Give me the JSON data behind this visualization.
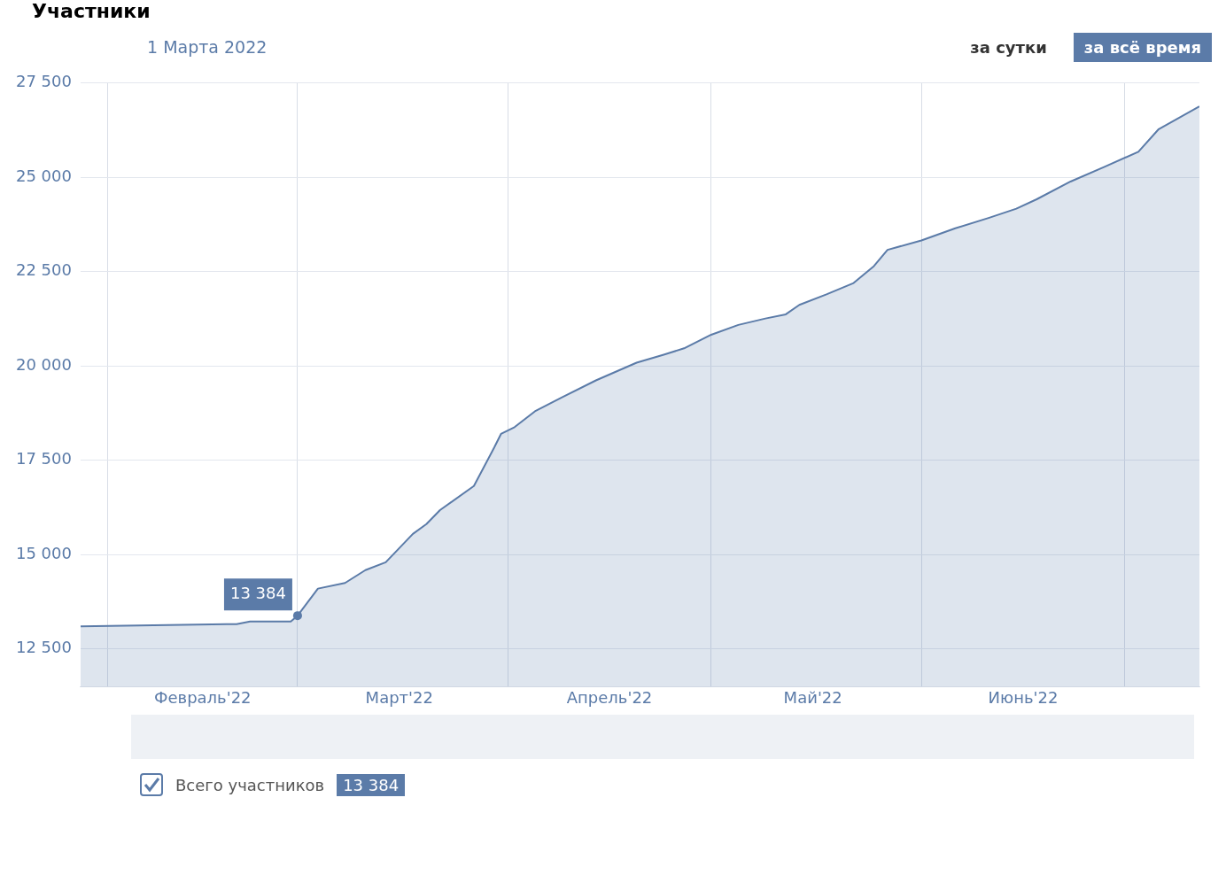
{
  "chart_data": {
    "type": "area",
    "title": "Участники",
    "subtitle": "1 Марта 2022",
    "x": [
      "2022-01-28",
      "2022-02-20",
      "2022-02-22",
      "2022-02-28",
      "2022-03-01",
      "2022-03-04",
      "2022-03-08",
      "2022-03-11",
      "2022-03-14",
      "2022-03-18",
      "2022-03-20",
      "2022-03-22",
      "2022-03-27",
      "2022-03-30",
      "2022-03-31",
      "2022-04-02",
      "2022-04-05",
      "2022-04-09",
      "2022-04-14",
      "2022-04-20",
      "2022-04-24",
      "2022-04-27",
      "2022-05-01",
      "2022-05-05",
      "2022-05-09",
      "2022-05-12",
      "2022-05-14",
      "2022-05-18",
      "2022-05-22",
      "2022-05-25",
      "2022-05-27",
      "2022-06-01",
      "2022-06-06",
      "2022-06-11",
      "2022-06-15",
      "2022-06-18",
      "2022-06-23",
      "2022-06-28",
      "2022-07-03",
      "2022-07-06",
      "2022-07-12"
    ],
    "series": [
      {
        "name": "Всего участников",
        "color": "#5b7ba8",
        "values": [
          13100,
          13160,
          13230,
          13230,
          13384,
          14100,
          14250,
          14590,
          14800,
          15550,
          15810,
          16180,
          16820,
          17840,
          18200,
          18380,
          18800,
          19170,
          19620,
          20090,
          20300,
          20470,
          20830,
          21090,
          21260,
          21370,
          21620,
          21900,
          22200,
          22650,
          23080,
          23330,
          23650,
          23930,
          24170,
          24420,
          24890,
          25280,
          25680,
          26280,
          26880
        ]
      }
    ],
    "xlim": [
      "2022-01-28",
      "2022-07-12"
    ],
    "xticks": [
      {
        "value": "2022-02-01",
        "label": null
      },
      {
        "value": "2022-02-15",
        "label": "Февраль'22"
      },
      {
        "value": "2022-03-01",
        "label": null
      },
      {
        "value": "2022-03-16",
        "label": "Март'22"
      },
      {
        "value": "2022-04-01",
        "label": null
      },
      {
        "value": "2022-04-16",
        "label": "Апрель'22"
      },
      {
        "value": "2022-05-01",
        "label": null
      },
      {
        "value": "2022-05-16",
        "label": "Май'22"
      },
      {
        "value": "2022-06-01",
        "label": null
      },
      {
        "value": "2022-06-16",
        "label": "Июнь'22"
      },
      {
        "value": "2022-07-01",
        "label": null
      }
    ],
    "ylim": [
      11500,
      27500
    ],
    "yticks": [
      {
        "value": 12500,
        "label": "12 500"
      },
      {
        "value": 15000,
        "label": "15 000"
      },
      {
        "value": 17500,
        "label": "17 500"
      },
      {
        "value": 20000,
        "label": "20 000"
      },
      {
        "value": 22500,
        "label": "22 500"
      },
      {
        "value": 25000,
        "label": "25 000"
      },
      {
        "value": 27500,
        "label": "27 500"
      }
    ],
    "grid": true,
    "legend": "bottom left",
    "annotations": [
      {
        "text": "13 384",
        "x": "2022-03-01",
        "y": 13384
      },
      "за сутки",
      "за всё время"
    ]
  }
}
